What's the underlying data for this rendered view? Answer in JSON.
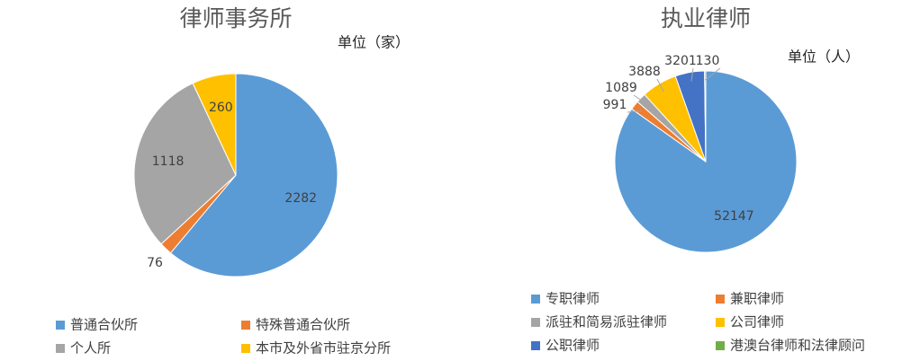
{
  "chart_data": [
    {
      "type": "pie",
      "title": "律师事务所",
      "unit": "单位（家）",
      "categories": [
        "普通合伙所",
        "特殊普通合伙所",
        "个人所",
        "本市及外省市驻京分所"
      ],
      "values": [
        2282,
        76,
        1118,
        260
      ],
      "colors": [
        "#5b9bd5",
        "#ed7d31",
        "#a5a5a5",
        "#ffc000"
      ]
    },
    {
      "type": "pie",
      "title": "执业律师",
      "unit": "单位（人）",
      "categories": [
        "专职律师",
        "兼职律师",
        "派驻和简易派驻律师",
        "公司律师",
        "公职律师",
        "港澳台律师和法律顾问"
      ],
      "values": [
        52147,
        991,
        1089,
        3888,
        3201,
        130
      ],
      "colors": [
        "#5b9bd5",
        "#ed7d31",
        "#a5a5a5",
        "#ffc000",
        "#4472c4",
        "#70ad47"
      ]
    }
  ]
}
